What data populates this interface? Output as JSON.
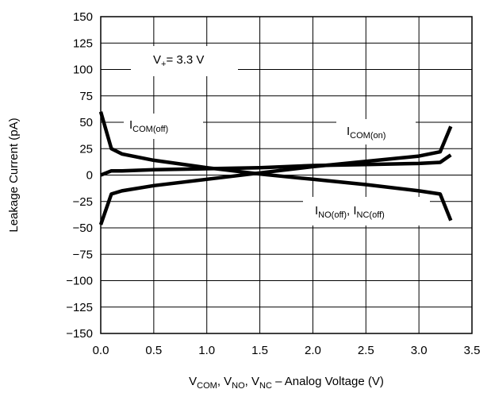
{
  "chart_data": {
    "type": "line",
    "xlabel": {
      "parts": [
        {
          "t": "V",
          "s": "COM"
        },
        {
          "t": ", V",
          "s": "NO"
        },
        {
          "t": ", V",
          "s": "NC"
        },
        {
          "t": " – Analog Voltage (V)",
          "s": ""
        }
      ]
    },
    "ylabel": "Leakage Current  (pA)",
    "xlim": [
      0,
      3.5
    ],
    "ylim": [
      -150,
      150
    ],
    "x_ticks": [
      "0.0",
      "0.5",
      "1.0",
      "1.5",
      "2.0",
      "2.5",
      "3.0",
      "3.5"
    ],
    "y_ticks": [
      "150",
      "125",
      "100",
      "75",
      "50",
      "25",
      "0",
      "−25",
      "−50",
      "−75",
      "−100",
      "−125",
      "−150"
    ],
    "grid": true,
    "series": [
      {
        "name": "I_COM(off)",
        "x": [
          0.0,
          0.1,
          0.2,
          0.5,
          1.0,
          1.5,
          2.0,
          2.5,
          3.0,
          3.2,
          3.3
        ],
        "y": [
          60,
          25,
          20,
          14,
          7,
          1,
          -4,
          -9,
          -15,
          -18,
          -43
        ]
      },
      {
        "name": "I_COM(on)",
        "x": [
          0.0,
          0.1,
          0.2,
          0.5,
          1.0,
          1.5,
          2.0,
          2.5,
          3.0,
          3.2,
          3.3
        ],
        "y": [
          0,
          4,
          4,
          5,
          6,
          7,
          9,
          10,
          11,
          12,
          19
        ]
      },
      {
        "name": "I_NO(off), I_NC(off)",
        "x": [
          0.0,
          0.1,
          0.2,
          0.5,
          1.0,
          1.5,
          2.0,
          2.5,
          3.0,
          3.2,
          3.3
        ],
        "y": [
          -47,
          -18,
          -15,
          -10,
          -4,
          2,
          8,
          13,
          18,
          22,
          46
        ]
      }
    ],
    "annotations": {
      "condition": {
        "parts": [
          {
            "t": "V",
            "s": "+"
          },
          {
            "t": "= 3.3 V",
            "s": ""
          }
        ]
      },
      "com_off": {
        "parts": [
          {
            "t": "I",
            "s": "COM(off)"
          }
        ]
      },
      "com_on": {
        "parts": [
          {
            "t": "I",
            "s": "COM(on)"
          }
        ]
      },
      "no_nc_off": {
        "parts": [
          {
            "t": "I",
            "s": "NO(off)"
          },
          {
            "t": ", I",
            "s": "NC(off)"
          }
        ]
      }
    }
  }
}
